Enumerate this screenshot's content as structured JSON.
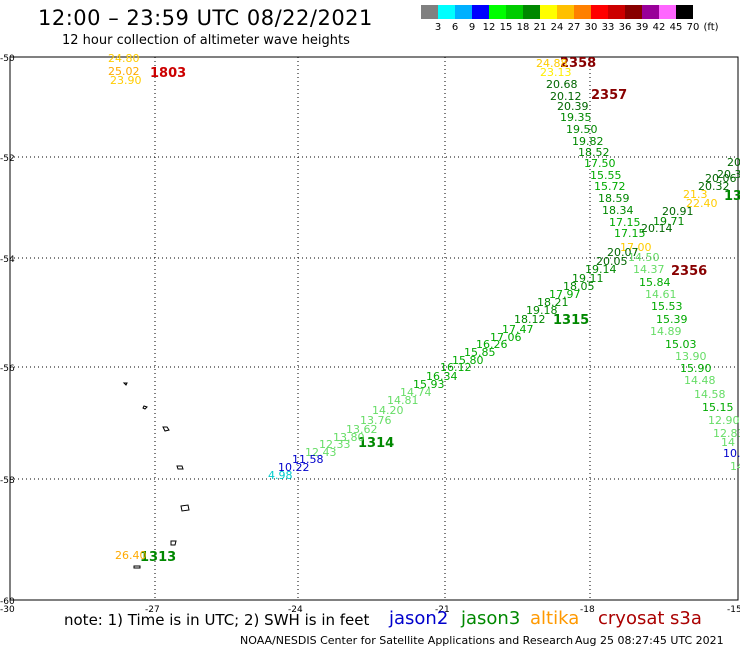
{
  "header": {
    "title": "12:00 – 23:59 UTC 08/22/2021",
    "subtitle": "12 hour collection of altimeter wave heights"
  },
  "colorbar": {
    "unit": "(ft)",
    "colors": [
      "#808080",
      "#00ffff",
      "#00b0ff",
      "#0000ff",
      "#00ff00",
      "#00cc00",
      "#008800",
      "#ffff00",
      "#ffc000",
      "#ff8000",
      "#ff0000",
      "#cc0000",
      "#880000",
      "#990099",
      "#ff66ff",
      "#000000"
    ],
    "labels": [
      "3",
      "6",
      "9",
      "12",
      "15",
      "18",
      "21",
      "24",
      "27",
      "30",
      "33",
      "36",
      "39",
      "42",
      "45",
      "70"
    ]
  },
  "axes": {
    "lat_labels": [
      "-50",
      "-52",
      "-54",
      "-56",
      "-58",
      "-60"
    ],
    "lon_labels": [
      "-30",
      "-27",
      "-24",
      "-21",
      "-18",
      "-15"
    ]
  },
  "footer": {
    "note": "note: 1) Time is in UTC; 2) SWH is in feet",
    "missions": [
      {
        "name": "jason2",
        "color": "#0000cc"
      },
      {
        "name": "jason3",
        "color": "#008800"
      },
      {
        "name": "altika",
        "color": "#ff9900"
      },
      {
        "name": "cryosat",
        "color": "#aa0000"
      },
      {
        "name": "s3a",
        "color": "#aa0000"
      }
    ],
    "credit": "NOAA/NESDIS Center for Satellite Applications and Research",
    "timestamp": "Aug 25 08:27:45 UTC 2021"
  },
  "map_data": {
    "time_labels": [
      {
        "text": "1803",
        "color": "#cc0000"
      },
      {
        "text": "2358",
        "color": "#880000"
      },
      {
        "text": "2357",
        "color": "#880000"
      },
      {
        "text": "2356",
        "color": "#880000"
      },
      {
        "text": "1315",
        "color": "#008800"
      },
      {
        "text": "1314",
        "color": "#008800"
      },
      {
        "text": "1313",
        "color": "#008800"
      },
      {
        "text": "13",
        "color": "#008800"
      }
    ],
    "wave_heights": [
      {
        "text": "24.80",
        "color": "#ffcc00"
      },
      {
        "text": "25.02",
        "color": "#ffaa00"
      },
      {
        "text": "23.90",
        "color": "#ffcc00"
      },
      {
        "text": "24.88",
        "color": "#ffcc00"
      },
      {
        "text": "23.13",
        "color": "#ffee00"
      },
      {
        "text": "20.68",
        "color": "#006600"
      },
      {
        "text": "20.12",
        "color": "#006600"
      },
      {
        "text": "20.39",
        "color": "#006600"
      },
      {
        "text": "19.35",
        "color": "#008800"
      },
      {
        "text": "19.50",
        "color": "#008800"
      },
      {
        "text": "19.82",
        "color": "#008800"
      },
      {
        "text": "18.52",
        "color": "#008800"
      },
      {
        "text": "17.50",
        "color": "#00aa00"
      },
      {
        "text": "15.55",
        "color": "#00aa00"
      },
      {
        "text": "15.72",
        "color": "#00aa00"
      },
      {
        "text": "18.59",
        "color": "#008800"
      },
      {
        "text": "18.34",
        "color": "#008800"
      },
      {
        "text": "17.15",
        "color": "#00aa00"
      },
      {
        "text": "17.15",
        "color": "#00aa00"
      },
      {
        "text": "17.00",
        "color": "#ffcc00"
      },
      {
        "text": "14.50",
        "color": "#66dd66"
      },
      {
        "text": "14.37",
        "color": "#66dd66"
      },
      {
        "text": "15.84",
        "color": "#00aa00"
      },
      {
        "text": "14.61",
        "color": "#66dd66"
      },
      {
        "text": "15.53",
        "color": "#00aa00"
      },
      {
        "text": "15.39",
        "color": "#00aa00"
      },
      {
        "text": "14.89",
        "color": "#66dd66"
      },
      {
        "text": "15.03",
        "color": "#00aa00"
      },
      {
        "text": "13.90",
        "color": "#66dd66"
      },
      {
        "text": "15.90",
        "color": "#00aa00"
      },
      {
        "text": "14.48",
        "color": "#66dd66"
      },
      {
        "text": "14.58",
        "color": "#66dd66"
      },
      {
        "text": "15.15",
        "color": "#00aa00"
      },
      {
        "text": "12.90",
        "color": "#66dd66"
      },
      {
        "text": "12.83",
        "color": "#66dd66"
      },
      {
        "text": "14",
        "color": "#66dd66"
      },
      {
        "text": "10.",
        "color": "#0000cc"
      },
      {
        "text": "14",
        "color": "#66dd66"
      },
      {
        "text": "20",
        "color": "#006600"
      },
      {
        "text": "20.3",
        "color": "#006600"
      },
      {
        "text": "20.06",
        "color": "#006600"
      },
      {
        "text": "20.32",
        "color": "#006600"
      },
      {
        "text": "21.3",
        "color": "#ffcc00"
      },
      {
        "text": "22.40",
        "color": "#ffcc00"
      },
      {
        "text": "20.91",
        "color": "#006600"
      },
      {
        "text": "19.71",
        "color": "#008800"
      },
      {
        "text": "20.14",
        "color": "#006600"
      },
      {
        "text": "20.07",
        "color": "#006600"
      },
      {
        "text": "20.05",
        "color": "#006600"
      },
      {
        "text": "19.14",
        "color": "#008800"
      },
      {
        "text": "19.11",
        "color": "#008800"
      },
      {
        "text": "18.05",
        "color": "#008800"
      },
      {
        "text": "17.97",
        "color": "#00aa00"
      },
      {
        "text": "18.21",
        "color": "#008800"
      },
      {
        "text": "19.18",
        "color": "#008800"
      },
      {
        "text": "18.12",
        "color": "#008800"
      },
      {
        "text": "17.47",
        "color": "#00aa00"
      },
      {
        "text": "17.06",
        "color": "#00aa00"
      },
      {
        "text": "16.26",
        "color": "#00aa00"
      },
      {
        "text": "15.85",
        "color": "#00aa00"
      },
      {
        "text": "15.80",
        "color": "#00aa00"
      },
      {
        "text": "16.12",
        "color": "#00aa00"
      },
      {
        "text": "16.34",
        "color": "#00aa00"
      },
      {
        "text": "15.93",
        "color": "#00aa00"
      },
      {
        "text": "14.74",
        "color": "#66dd66"
      },
      {
        "text": "14.81",
        "color": "#66dd66"
      },
      {
        "text": "14.20",
        "color": "#66dd66"
      },
      {
        "text": "13.76",
        "color": "#66dd66"
      },
      {
        "text": "13.62",
        "color": "#66dd66"
      },
      {
        "text": "13.80",
        "color": "#66dd66"
      },
      {
        "text": "12.33",
        "color": "#66dd66"
      },
      {
        "text": "12.43",
        "color": "#66dd66"
      },
      {
        "text": "11.58",
        "color": "#0000cc"
      },
      {
        "text": "10.22",
        "color": "#0000cc"
      },
      {
        "text": "4.98",
        "color": "#00cccc"
      },
      {
        "text": "26.40",
        "color": "#ffaa00"
      }
    ]
  }
}
